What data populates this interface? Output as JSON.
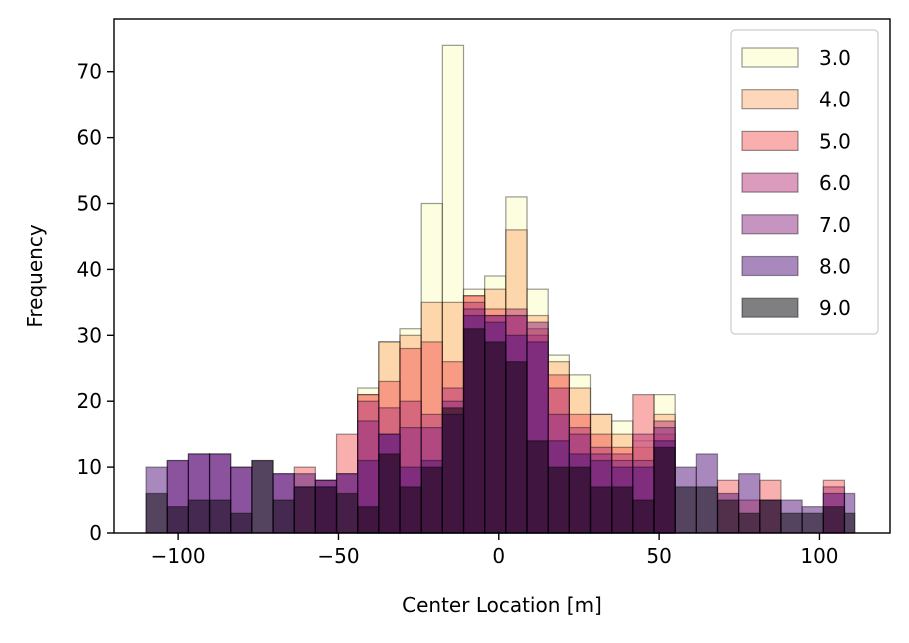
{
  "chart_data": {
    "type": "bar",
    "xlabel": "Center Location [m]",
    "ylabel": "Frequency",
    "xlim": [
      -120,
      122
    ],
    "ylim": [
      0,
      78
    ],
    "xticks": [
      -100,
      -50,
      0,
      50,
      100
    ],
    "xtick_labels": [
      "−100",
      "−50",
      "0",
      "50",
      "100"
    ],
    "yticks": [
      0,
      10,
      20,
      30,
      40,
      50,
      60,
      70
    ],
    "ytick_labels": [
      "0",
      "10",
      "20",
      "30",
      "40",
      "50",
      "60",
      "70"
    ],
    "legend_position": "top-right",
    "grid": false,
    "bin_edges": [
      -110.0,
      -103.4,
      -96.8,
      -90.2,
      -83.6,
      -77.0,
      -70.4,
      -63.8,
      -57.2,
      -50.6,
      -44.0,
      -37.4,
      -30.8,
      -24.2,
      -17.6,
      -11.0,
      -4.4,
      2.2,
      8.8,
      15.4,
      22.0,
      28.6,
      35.2,
      41.8,
      48.4,
      55.0,
      61.6,
      68.2,
      74.8,
      81.4,
      88.0,
      94.6,
      101.2,
      107.8,
      111.0
    ],
    "series": [
      {
        "name": "3.0",
        "color": "#fcfdbf",
        "values": [
          0,
          0,
          0,
          0,
          0,
          0,
          0,
          0,
          0,
          0,
          22,
          29,
          31,
          50,
          74,
          37,
          39,
          51,
          37,
          27,
          24,
          18,
          17,
          14,
          21,
          0,
          0,
          0,
          0,
          0,
          0,
          0,
          0,
          0
        ]
      },
      {
        "name": "4.0",
        "color": "#feb078",
        "values": [
          0,
          0,
          0,
          0,
          0,
          0,
          0,
          0,
          0,
          0,
          21,
          29,
          30,
          35,
          35,
          36,
          37,
          46,
          33,
          26,
          22,
          18,
          15,
          13,
          18,
          0,
          0,
          0,
          0,
          0,
          0,
          0,
          0,
          0
        ]
      },
      {
        "name": "5.0",
        "color": "#f1605d",
        "values": [
          0,
          0,
          0,
          0,
          0,
          0,
          0,
          10,
          8,
          15,
          21,
          23,
          28,
          29,
          26,
          36,
          34,
          33,
          31,
          24,
          18,
          15,
          13,
          21,
          15,
          0,
          0,
          8,
          5,
          8,
          0,
          0,
          8,
          0
        ]
      },
      {
        "name": "6.0",
        "color": "#b73779",
        "values": [
          0,
          0,
          0,
          0,
          0,
          0,
          0,
          0,
          7,
          0,
          20,
          19,
          20,
          18,
          22,
          35,
          33,
          34,
          30,
          22,
          16,
          13,
          12,
          15,
          17,
          0,
          0,
          0,
          0,
          0,
          0,
          0,
          7,
          0
        ]
      },
      {
        "name": "7.0",
        "color": "#8c2981",
        "values": [
          0,
          11,
          12,
          12,
          10,
          0,
          9,
          7,
          8,
          9,
          17,
          15,
          16,
          16,
          20,
          34,
          33,
          33,
          32,
          18,
          15,
          12,
          11,
          11,
          16,
          0,
          0,
          0,
          0,
          0,
          0,
          0,
          0,
          0
        ]
      },
      {
        "name": "8.0",
        "color": "#51127c",
        "values": [
          10,
          11,
          12,
          12,
          10,
          11,
          9,
          9,
          8,
          9,
          11,
          15,
          10,
          11,
          18,
          33,
          32,
          30,
          29,
          14,
          12,
          11,
          10,
          10,
          14,
          10,
          12,
          6,
          9,
          5,
          5,
          4,
          6,
          6
        ]
      },
      {
        "name": "9.0",
        "color": "#000004",
        "values": [
          6,
          4,
          5,
          5,
          3,
          11,
          5,
          7,
          7,
          6,
          4,
          12,
          7,
          10,
          19,
          31,
          29,
          26,
          14,
          10,
          10,
          7,
          7,
          5,
          13,
          7,
          7,
          5,
          3,
          5,
          3,
          3,
          4,
          3
        ]
      }
    ]
  }
}
